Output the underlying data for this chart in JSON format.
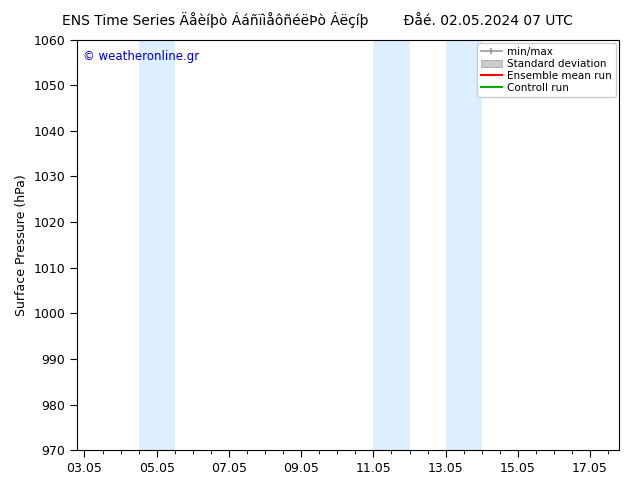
{
  "title_left": "ENS Time Series Äåèíþò ÁáñïìåôñéëÞò Áëçíþ",
  "title_right": "Ðåé. 02.05.2024 07 UTC",
  "ylabel": "Surface Pressure (hPa)",
  "ylim": [
    970,
    1060
  ],
  "yticks": [
    970,
    980,
    990,
    1000,
    1010,
    1020,
    1030,
    1040,
    1050,
    1060
  ],
  "xtick_labels": [
    "03.05",
    "05.05",
    "07.05",
    "09.05",
    "11.05",
    "13.05",
    "15.05",
    "17.05"
  ],
  "xtick_positions": [
    0,
    2,
    4,
    6,
    8,
    10,
    12,
    14
  ],
  "xlim": [
    -0.2,
    14.8
  ],
  "shaded_bands": [
    {
      "x_start": 1.5,
      "x_end": 2.5,
      "color": "#ddeeff"
    },
    {
      "x_start": 8.0,
      "x_end": 9.0,
      "color": "#ddeeff"
    },
    {
      "x_start": 10.0,
      "x_end": 11.0,
      "color": "#ddeeff"
    }
  ],
  "background_color": "#ffffff",
  "plot_bg_color": "#ffffff",
  "legend_entries": [
    "min/max",
    "Standard deviation",
    "Ensemble mean run",
    "Controll run"
  ],
  "legend_colors": [
    "#999999",
    "#cccccc",
    "#ff0000",
    "#00aa00"
  ],
  "watermark": "© weatheronline.gr",
  "watermark_color": "#0000cc",
  "title_fontsize": 10,
  "axis_label_fontsize": 9,
  "tick_fontsize": 9
}
